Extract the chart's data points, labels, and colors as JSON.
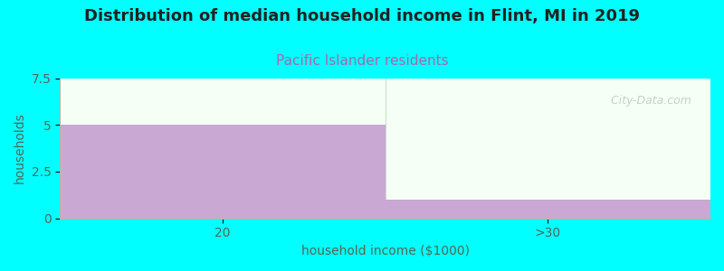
{
  "title": "Distribution of median household income in Flint, MI in 2019",
  "subtitle": "Pacific Islander residents",
  "xlabel": "household income ($1000)",
  "ylabel": "households",
  "categories": [
    "20",
    ">30"
  ],
  "values": [
    5,
    1
  ],
  "bar_color": "#C9A8D4",
  "background_color": "#00FFFF",
  "plot_bg_top": "#F5FFF5",
  "plot_bg_bottom": "#E8F5E8",
  "ylim": [
    0,
    7.5
  ],
  "yticks": [
    0,
    2.5,
    5,
    7.5
  ],
  "title_fontsize": 13,
  "subtitle_fontsize": 11,
  "subtitle_color": "#AA66AA",
  "axis_label_color": "#556655",
  "tick_label_color": "#556655",
  "watermark_text": "  City-Data.com",
  "watermark_color": "#BBCCBB"
}
